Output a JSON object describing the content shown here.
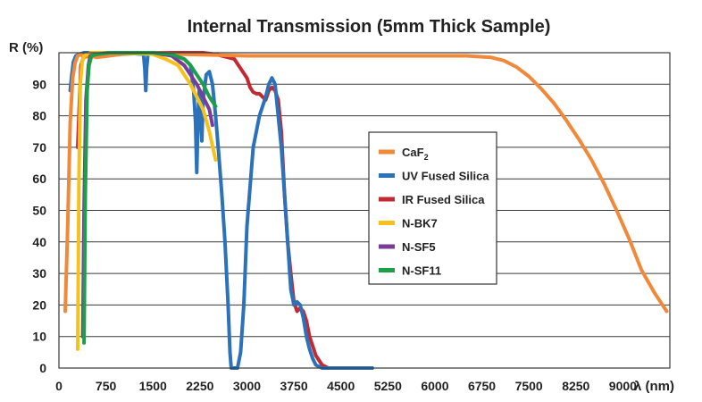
{
  "chart_data": {
    "type": "line",
    "title": "Internal Transmission (5mm Thick Sample)",
    "ylabel": "R (%)",
    "xlabel": "λ (nm)",
    "xlim": [
      0,
      9750
    ],
    "ylim": [
      0,
      100
    ],
    "x_ticks": [
      0,
      750,
      1500,
      2250,
      3000,
      3750,
      4500,
      5250,
      6000,
      6750,
      7500,
      8250,
      9000
    ],
    "y_ticks": [
      0,
      10,
      20,
      30,
      40,
      50,
      60,
      70,
      80,
      90
    ],
    "grid": true,
    "legend_position": "center-right",
    "series": [
      {
        "name": "CaF2",
        "name_main": "CaF",
        "name_sub": "2",
        "color": "#f0893a",
        "x": [
          100,
          140,
          180,
          220,
          260,
          300,
          350,
          400,
          500,
          600,
          800,
          1000,
          1500,
          2000,
          3000,
          4000,
          5000,
          6000,
          6500,
          6900,
          7100,
          7300,
          7500,
          7700,
          7900,
          8100,
          8300,
          8500,
          8700,
          8900,
          9100,
          9300,
          9500,
          9700
        ],
        "y": [
          18,
          45,
          78,
          92,
          97,
          99,
          99.5,
          98.5,
          99,
          98.5,
          99,
          99.5,
          100,
          99.5,
          99,
          99,
          99,
          99,
          99,
          98.5,
          97.5,
          95.5,
          92.5,
          88.5,
          84,
          78.5,
          72.5,
          66,
          58.5,
          50,
          41,
          31,
          24,
          18
        ]
      },
      {
        "name": "UV Fused Silica",
        "color": "#2b72ba",
        "x": [
          180,
          200,
          230,
          270,
          320,
          400,
          600,
          1000,
          1350,
          1370,
          1385,
          1400,
          1420,
          1500,
          1800,
          2000,
          2100,
          2150,
          2180,
          2200,
          2220,
          2240,
          2260,
          2280,
          2300,
          2350,
          2400,
          2450,
          2500,
          2550,
          2600,
          2650,
          2700,
          2730,
          2750,
          2780,
          2800,
          2850,
          2900,
          2950,
          3000,
          3100,
          3200,
          3300,
          3350,
          3400,
          3450,
          3500,
          3550,
          3600,
          3650,
          3700,
          3750,
          3800,
          3850,
          3900,
          3950,
          4000,
          4050,
          4100,
          4200,
          4300,
          4400,
          4600,
          4800,
          5000
        ],
        "y": [
          88,
          92,
          97,
          99,
          99.5,
          100,
          100,
          100,
          99.5,
          95,
          88,
          95,
          99.5,
          100,
          99.5,
          98,
          96,
          88,
          78,
          62,
          80,
          88,
          80,
          72,
          85,
          93,
          94,
          90,
          80,
          68,
          55,
          40,
          20,
          5,
          0,
          0,
          0,
          0,
          5,
          20,
          45,
          70,
          80,
          86,
          90,
          92,
          90,
          80,
          70,
          55,
          40,
          25,
          20,
          21,
          20,
          16,
          10,
          6,
          3,
          1,
          0,
          0,
          0,
          0,
          0,
          0
        ]
      },
      {
        "name": "IR Fused Silica",
        "color": "#c22a33",
        "x": [
          300,
          350,
          400,
          500,
          800,
          1200,
          1500,
          2000,
          2300,
          2500,
          2800,
          2900,
          3000,
          3050,
          3100,
          3150,
          3200,
          3250,
          3300,
          3350,
          3400,
          3450,
          3500,
          3550,
          3600,
          3650,
          3700,
          3750,
          3800,
          3850,
          3900,
          3950,
          4000,
          4100,
          4200,
          4300,
          4400,
          4600,
          4800,
          5000
        ],
        "y": [
          70,
          96,
          99,
          99.5,
          100,
          100,
          100,
          100,
          100,
          99.5,
          98,
          95,
          92,
          89,
          87.5,
          87,
          87,
          86,
          85,
          88,
          89,
          88,
          85,
          75,
          55,
          40,
          30,
          21,
          18,
          19,
          18,
          15,
          10,
          4,
          1,
          0,
          0,
          0,
          0,
          0
        ]
      },
      {
        "name": "N-BK7",
        "color": "#f7c11b",
        "x": [
          300,
          320,
          340,
          370,
          400,
          450,
          500,
          700,
          1000,
          1500,
          1700,
          1900,
          2000,
          2100,
          2200,
          2300,
          2400,
          2500
        ],
        "y": [
          6,
          60,
          90,
          97,
          99,
          99.5,
          100,
          100,
          100,
          99.5,
          98,
          96,
          93,
          90,
          86,
          82,
          75,
          66
        ]
      },
      {
        "name": "N-SF5",
        "color": "#7a3d97",
        "x": [
          380,
          400,
          430,
          470,
          500,
          600,
          800,
          1000,
          1500,
          1800,
          2000,
          2100,
          2200,
          2300,
          2400,
          2450
        ],
        "y": [
          10,
          50,
          85,
          96,
          99,
          99.5,
          100,
          100,
          100,
          99,
          96,
          93,
          90,
          86,
          82,
          77
        ]
      },
      {
        "name": "N-SF11",
        "color": "#1f9e4a",
        "x": [
          400,
          420,
          450,
          480,
          520,
          600,
          800,
          1000,
          1500,
          1800,
          2000,
          2100,
          2200,
          2300,
          2400,
          2500
        ],
        "y": [
          8,
          55,
          88,
          96,
          99,
          99.5,
          100,
          100,
          100,
          99.5,
          98,
          96,
          93,
          90,
          86,
          83
        ]
      }
    ]
  }
}
